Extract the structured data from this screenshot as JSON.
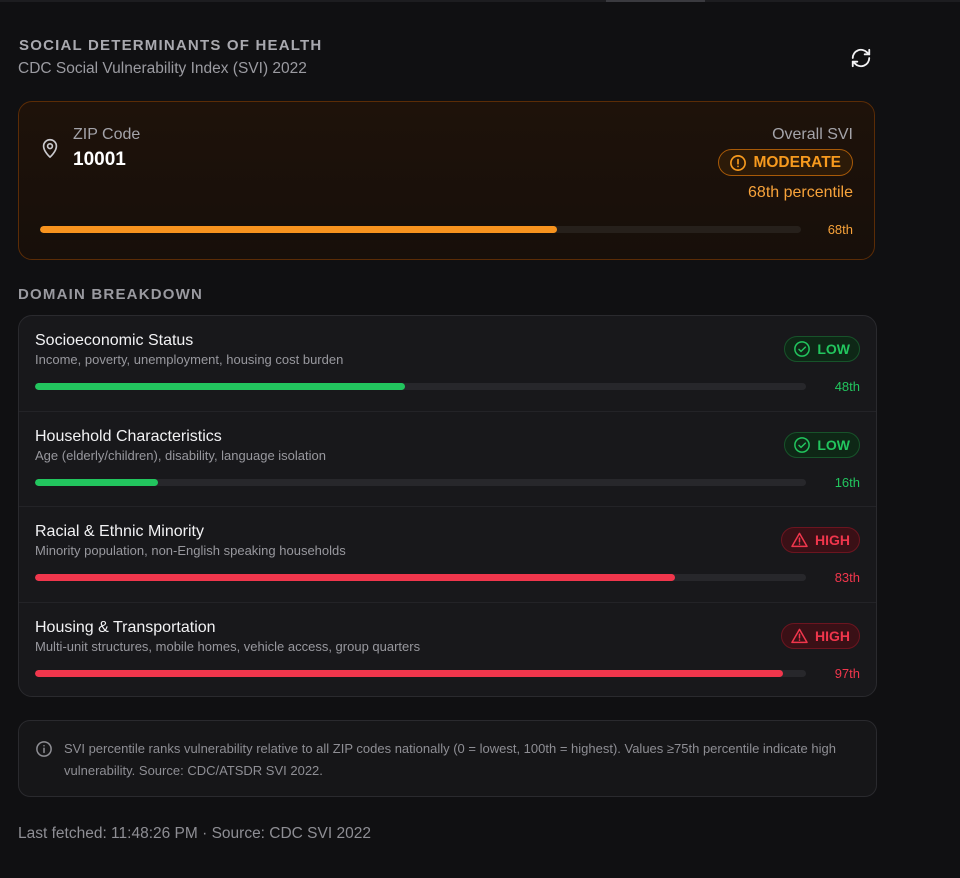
{
  "header": {
    "title": "SOCIAL DETERMINANTS OF HEALTH",
    "subtitle": "CDC Social Vulnerability Index (SVI) 2022",
    "refresh_icon": "refresh-icon"
  },
  "summary": {
    "zip_label": "ZIP Code",
    "zip_value": "10001",
    "overall_label": "Overall SVI",
    "level": "MODERATE",
    "percentile_text": "68th percentile",
    "percentile": 68,
    "percentile_short": "68th",
    "accent": "#f7931e",
    "icons": [
      "map-pin-icon",
      "alert-circle-icon"
    ]
  },
  "section_title": "DOMAIN BREAKDOWN",
  "domains": [
    {
      "title": "Socioeconomic Status",
      "description": "Income, poverty, unemployment, housing cost burden",
      "level": "LOW",
      "percentile": 48,
      "percentile_label": "48th",
      "color": "#22c55e",
      "icon": "check-circle-icon"
    },
    {
      "title": "Household Characteristics",
      "description": "Age (elderly/children), disability, language isolation",
      "level": "LOW",
      "percentile": 16,
      "percentile_label": "16th",
      "color": "#22c55e",
      "icon": "check-circle-icon"
    },
    {
      "title": "Racial & Ethnic Minority",
      "description": "Minority population, non-English speaking households",
      "level": "HIGH",
      "percentile": 83,
      "percentile_label": "83th",
      "color": "#f0364c",
      "icon": "alert-triangle-icon"
    },
    {
      "title": "Housing & Transportation",
      "description": "Multi-unit structures, mobile homes, vehicle access, group quarters",
      "level": "HIGH",
      "percentile": 97,
      "percentile_label": "97th",
      "color": "#f0364c",
      "icon": "alert-triangle-icon"
    }
  ],
  "info": {
    "text": "SVI percentile ranks vulnerability relative to all ZIP codes nationally (0 = lowest, 100th = highest). Values ≥75th percentile indicate high vulnerability. Source: CDC/ATSDR SVI 2022.",
    "icon": "info-icon"
  },
  "footer": {
    "text": "Last fetched: 11:48:26 PM · Source: CDC SVI 2022"
  }
}
